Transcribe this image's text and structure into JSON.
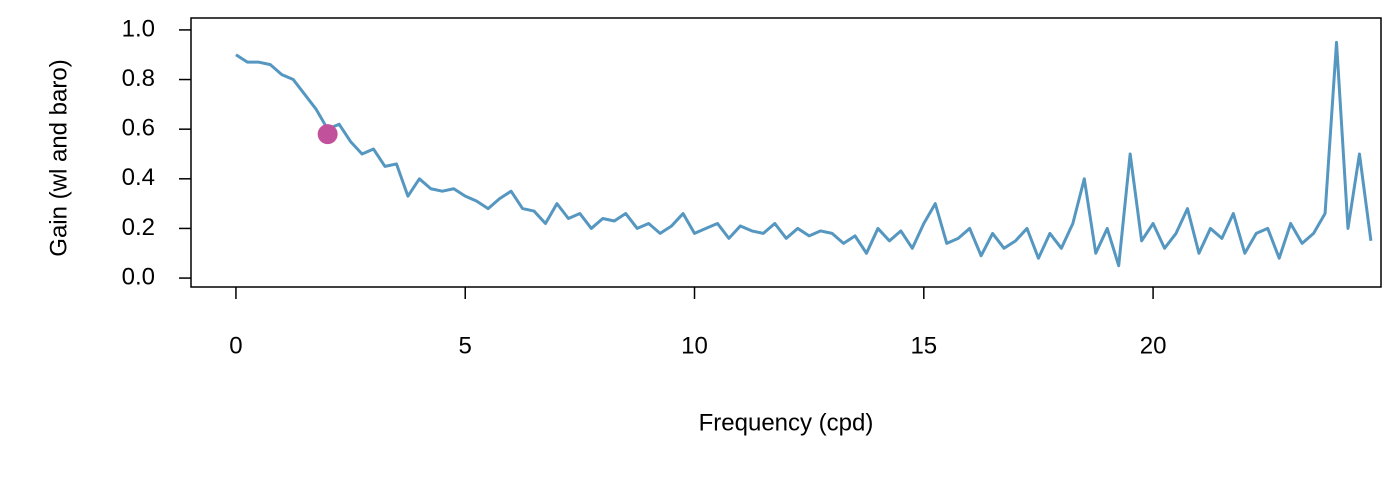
{
  "chart_data": {
    "type": "line",
    "xlabel": "Frequency (cpd)",
    "ylabel": "Gain (wl and baro)",
    "xlim": [
      -0.98,
      24.97
    ],
    "ylim": [
      -0.036,
      1.048
    ],
    "xticks": [
      0,
      5,
      10,
      15,
      20
    ],
    "yticks": [
      {
        "value": 0,
        "label": "0.0"
      },
      0.2,
      0.4,
      0.6,
      0.8,
      {
        "value": 1,
        "label": "1.0"
      }
    ],
    "grid": false,
    "x": [
      0,
      0.25,
      0.5,
      0.75,
      1,
      1.25,
      1.5,
      1.75,
      2,
      2.25,
      2.5,
      2.75,
      3,
      3.25,
      3.5,
      3.75,
      4,
      4.25,
      4.5,
      4.75,
      5,
      5.25,
      5.5,
      5.75,
      6,
      6.25,
      6.5,
      6.75,
      7,
      7.25,
      7.5,
      7.75,
      8,
      8.25,
      8.5,
      8.75,
      9,
      9.25,
      9.5,
      9.75,
      10,
      10.25,
      10.5,
      10.75,
      11,
      11.25,
      11.5,
      11.75,
      12,
      12.25,
      12.5,
      12.75,
      13,
      13.25,
      13.5,
      13.75,
      14,
      14.25,
      14.5,
      14.75,
      15,
      15.25,
      15.5,
      15.75,
      16,
      16.25,
      16.5,
      16.75,
      17,
      17.25,
      17.5,
      17.75,
      18,
      18.25,
      18.5,
      18.75,
      19,
      19.25,
      19.5,
      19.75,
      20,
      20.25,
      20.5,
      20.75,
      21,
      21.25,
      21.5,
      21.75,
      22,
      22.25,
      22.5,
      22.75,
      23,
      23.25,
      23.5,
      23.75,
      24,
      24.25,
      24.5,
      24.75
    ],
    "series": [
      {
        "name": "gain",
        "color": "#5597c0",
        "values": [
          0.9,
          0.87,
          0.87,
          0.86,
          0.82,
          0.8,
          0.74,
          0.68,
          0.6,
          0.62,
          0.55,
          0.5,
          0.52,
          0.45,
          0.46,
          0.33,
          0.4,
          0.36,
          0.35,
          0.36,
          0.33,
          0.31,
          0.28,
          0.32,
          0.35,
          0.28,
          0.27,
          0.22,
          0.3,
          0.24,
          0.26,
          0.2,
          0.24,
          0.23,
          0.26,
          0.2,
          0.22,
          0.18,
          0.21,
          0.26,
          0.18,
          0.2,
          0.22,
          0.16,
          0.21,
          0.19,
          0.18,
          0.22,
          0.16,
          0.2,
          0.17,
          0.19,
          0.18,
          0.14,
          0.17,
          0.1,
          0.2,
          0.15,
          0.19,
          0.12,
          0.22,
          0.3,
          0.14,
          0.16,
          0.2,
          0.09,
          0.18,
          0.12,
          0.15,
          0.2,
          0.08,
          0.18,
          0.12,
          0.22,
          0.4,
          0.1,
          0.2,
          0.05,
          0.5,
          0.15,
          0.22,
          0.12,
          0.18,
          0.28,
          0.1,
          0.2,
          0.16,
          0.26,
          0.1,
          0.18,
          0.2,
          0.08,
          0.22,
          0.14,
          0.18,
          0.26,
          0.95,
          0.2,
          0.5,
          0.15
        ]
      }
    ],
    "highlight": {
      "x": 2,
      "y": 0.58,
      "color": "#c2519b"
    }
  }
}
